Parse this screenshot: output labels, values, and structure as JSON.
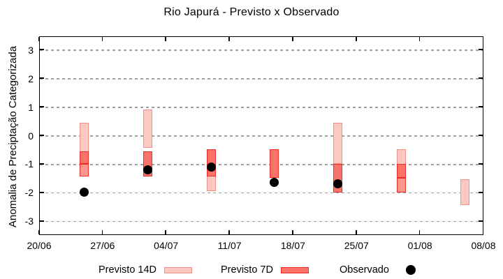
{
  "title": "Rio Japurá - Previsto x Observado",
  "chart_data": {
    "type": "candlestick-forecast",
    "title": "Rio Japurá - Previsto x Observado",
    "ylabel": "Anomalia de Preciptação Categorizada",
    "xlabel": "",
    "grid": true,
    "legend_position": "bottom",
    "ylim": [
      -3.48,
      3.48
    ],
    "xlim_days": [
      0,
      49
    ],
    "y_ticks": [
      3,
      2,
      1,
      0,
      -1,
      -2,
      -3
    ],
    "x_ticks": [
      {
        "day": 0,
        "label": "20/06"
      },
      {
        "day": 7,
        "label": "27/06"
      },
      {
        "day": 14,
        "label": "04/07"
      },
      {
        "day": 21,
        "label": "11/07"
      },
      {
        "day": 28,
        "label": "18/07"
      },
      {
        "day": 35,
        "label": "25/07"
      },
      {
        "day": 42,
        "label": "01/08"
      },
      {
        "day": 49,
        "label": "08/08"
      }
    ],
    "colors": {
      "pink_fill": "#fbc9c1",
      "pink_border": "#f19286",
      "red_fill": "#fb726a",
      "red_light_fill": "#fc968e",
      "red_border": "#ea2e27",
      "observed": "#000000",
      "grid": "#9e9e9e"
    },
    "series": [
      {
        "name": "Previsto 14D",
        "type": "box",
        "boxes": [
          {
            "date": "25/06",
            "day": 5,
            "high": 0.45,
            "low": -1.45
          },
          {
            "date": "02/07",
            "day": 12,
            "high": 0.9,
            "low": -0.45
          },
          {
            "date": "09/07",
            "day": 19,
            "high": -0.5,
            "low": -1.95
          },
          {
            "date": "23/07",
            "day": 33,
            "high": 0.45,
            "low": -1.0
          },
          {
            "date": "30/07",
            "day": 40,
            "high": -0.5,
            "low": -2.0
          },
          {
            "date": "06/08",
            "day": 47,
            "high": -1.55,
            "low": -2.45
          }
        ]
      },
      {
        "name": "Previsto 7D",
        "type": "box",
        "boxes": [
          {
            "date": "25/06",
            "day": 5,
            "high": -0.55,
            "low": -1.0
          },
          {
            "date": "25/06",
            "day": 5,
            "high": -1.0,
            "low": -1.45,
            "light": true
          },
          {
            "date": "02/07",
            "day": 12,
            "high": -0.55,
            "low": -1.45
          },
          {
            "date": "09/07",
            "day": 19,
            "high": -0.5,
            "low": -1.45
          },
          {
            "date": "16/07",
            "day": 26,
            "high": -0.5,
            "low": -1.5
          },
          {
            "date": "23/07",
            "day": 33,
            "high": -1.0,
            "low": -2.0
          },
          {
            "date": "30/07",
            "day": 40,
            "high": -1.0,
            "low": -1.5
          },
          {
            "date": "30/07",
            "day": 40,
            "high": -1.5,
            "low": -2.0,
            "light": true
          }
        ]
      },
      {
        "name": "Observado",
        "type": "scatter",
        "points": [
          {
            "date": "25/06",
            "day": 5,
            "value": -2.0
          },
          {
            "date": "02/07",
            "day": 12,
            "value": -1.2
          },
          {
            "date": "09/07",
            "day": 19,
            "value": -1.1
          },
          {
            "date": "16/07",
            "day": 26,
            "value": -1.65
          },
          {
            "date": "23/07",
            "day": 33,
            "value": -1.7
          }
        ]
      }
    ]
  },
  "legend": {
    "previsto14_label": "Previsto 14D",
    "previsto7_label": "Previsto 7D",
    "observado_label": "Observado"
  }
}
